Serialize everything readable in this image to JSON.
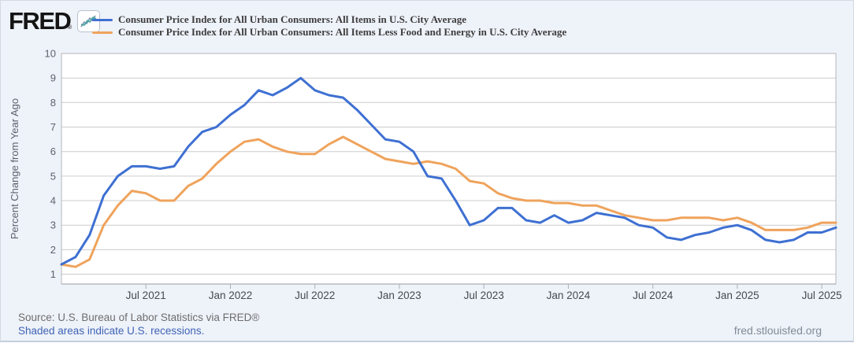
{
  "header": {
    "logo_text": "FRED",
    "logo_registered": "®",
    "logo_icon": "sparkline-chart-icon"
  },
  "legend": {
    "items": [
      {
        "label": "Consumer Price Index for All Urban Consumers: All Items in U.S. City Average",
        "color": "#3e70d2"
      },
      {
        "label": "Consumer Price Index for All Urban Consumers: All Items Less Food and Energy in U.S. City Average",
        "color": "#efa35c"
      }
    ]
  },
  "chart_data": {
    "type": "line",
    "title": "",
    "xlabel": "",
    "ylabel": "Percent Change from Year Ago",
    "ylim": [
      0.6,
      10
    ],
    "yticks": [
      1,
      2,
      3,
      4,
      5,
      6,
      7,
      8,
      9,
      10
    ],
    "grid": "horizontal",
    "legend_position": "top-left",
    "x": [
      "2021-01",
      "2021-02",
      "2021-03",
      "2021-04",
      "2021-05",
      "2021-06",
      "2021-07",
      "2021-08",
      "2021-09",
      "2021-10",
      "2021-11",
      "2021-12",
      "2022-01",
      "2022-02",
      "2022-03",
      "2022-04",
      "2022-05",
      "2022-06",
      "2022-07",
      "2022-08",
      "2022-09",
      "2022-10",
      "2022-11",
      "2022-12",
      "2023-01",
      "2023-02",
      "2023-03",
      "2023-04",
      "2023-05",
      "2023-06",
      "2023-07",
      "2023-08",
      "2023-09",
      "2023-10",
      "2023-11",
      "2023-12",
      "2024-01",
      "2024-02",
      "2024-03",
      "2024-04",
      "2024-05",
      "2024-06",
      "2024-07",
      "2024-08",
      "2024-09",
      "2024-10",
      "2024-11",
      "2024-12",
      "2025-01",
      "2025-02",
      "2025-03",
      "2025-04",
      "2025-05",
      "2025-06",
      "2025-07",
      "2025-08"
    ],
    "xticks": [
      {
        "label": "Jul 2021",
        "month_index": 6
      },
      {
        "label": "Jan 2022",
        "month_index": 12
      },
      {
        "label": "Jul 2022",
        "month_index": 18
      },
      {
        "label": "Jan 2023",
        "month_index": 24
      },
      {
        "label": "Jul 2023",
        "month_index": 30
      },
      {
        "label": "Jan 2024",
        "month_index": 36
      },
      {
        "label": "Jul 2024",
        "month_index": 42
      },
      {
        "label": "Jan 2025",
        "month_index": 48
      },
      {
        "label": "Jul 2025",
        "month_index": 54
      }
    ],
    "series": [
      {
        "name": "Consumer Price Index for All Urban Consumers: All Items in U.S. City Average",
        "color": "#3e70d2",
        "values": [
          1.4,
          1.7,
          2.6,
          4.2,
          5.0,
          5.4,
          5.4,
          5.3,
          5.4,
          6.2,
          6.8,
          7.0,
          7.5,
          7.9,
          8.5,
          8.3,
          8.6,
          9.0,
          8.5,
          8.3,
          8.2,
          7.7,
          7.1,
          6.5,
          6.4,
          6.0,
          5.0,
          4.9,
          4.0,
          3.0,
          3.2,
          3.7,
          3.7,
          3.2,
          3.1,
          3.4,
          3.1,
          3.2,
          3.5,
          3.4,
          3.3,
          3.0,
          2.9,
          2.5,
          2.4,
          2.6,
          2.7,
          2.9,
          3.0,
          2.8,
          2.4,
          2.3,
          2.4,
          2.7,
          2.7,
          2.9
        ]
      },
      {
        "name": "Consumer Price Index for All Urban Consumers: All Items Less Food and Energy in U.S. City Average",
        "color": "#efa35c",
        "values": [
          1.4,
          1.3,
          1.6,
          3.0,
          3.8,
          4.4,
          4.3,
          4.0,
          4.0,
          4.6,
          4.9,
          5.5,
          6.0,
          6.4,
          6.5,
          6.2,
          6.0,
          5.9,
          5.9,
          6.3,
          6.6,
          6.3,
          6.0,
          5.7,
          5.6,
          5.5,
          5.6,
          5.5,
          5.3,
          4.8,
          4.7,
          4.3,
          4.1,
          4.0,
          4.0,
          3.9,
          3.9,
          3.8,
          3.8,
          3.6,
          3.4,
          3.3,
          3.2,
          3.2,
          3.3,
          3.3,
          3.3,
          3.2,
          3.3,
          3.1,
          2.8,
          2.8,
          2.8,
          2.9,
          3.1,
          3.1
        ]
      }
    ]
  },
  "footer": {
    "source_text": "Source: U.S. Bureau of Labor Statistics via FRED®",
    "recession_note": "Shaded areas indicate U.S. recessions.",
    "site_link": "fred.stlouisfed.org"
  },
  "colors": {
    "page_background": "#eef2f9",
    "plot_background": "#ffffff",
    "gridline": "#cccccc",
    "plot_border": "#b4b7bc",
    "axis_line": "#999da3",
    "series1_blue": "#3e70d2",
    "series2_orange": "#efa35c",
    "link_blue": "#3f64b5"
  }
}
